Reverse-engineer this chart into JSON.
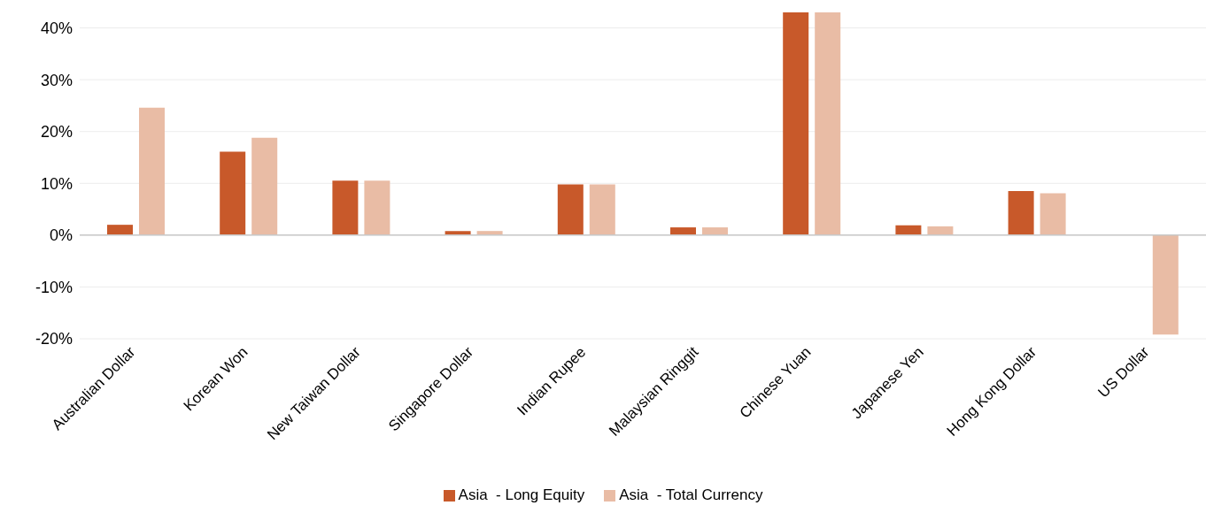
{
  "chart_data": {
    "type": "bar",
    "categories": [
      "Australian Dollar",
      "Korean Won",
      "New Taiwan Dollar",
      "Singapore Dollar",
      "Indian Rupee",
      "Malaysian Ringgit",
      "Chinese Yuan",
      "Japanese Yen",
      "Hong Kong Dollar",
      "US Dollar"
    ],
    "series": [
      {
        "name": "Asia  - Long Equity",
        "color": "#c8592a",
        "values": [
          2.0,
          16.1,
          10.5,
          0.8,
          9.8,
          1.5,
          43,
          1.9,
          8.5,
          0
        ]
      },
      {
        "name": "Asia  - Total Currency",
        "color": "#e9bca5",
        "values": [
          24.6,
          18.8,
          10.5,
          0.8,
          9.8,
          1.5,
          43,
          1.7,
          8.1,
          -19.2
        ]
      }
    ],
    "ylim": [
      -20,
      43
    ],
    "yticks": [
      {
        "value": -20,
        "label": "-20%"
      },
      {
        "value": -10,
        "label": "-10%"
      },
      {
        "value": 0,
        "label": "0%"
      },
      {
        "value": 10,
        "label": "10%"
      },
      {
        "value": 20,
        "label": "20%"
      },
      {
        "value": 30,
        "label": "30%"
      },
      {
        "value": 40,
        "label": "40%"
      }
    ],
    "grid": "y",
    "legend": "bottom"
  }
}
